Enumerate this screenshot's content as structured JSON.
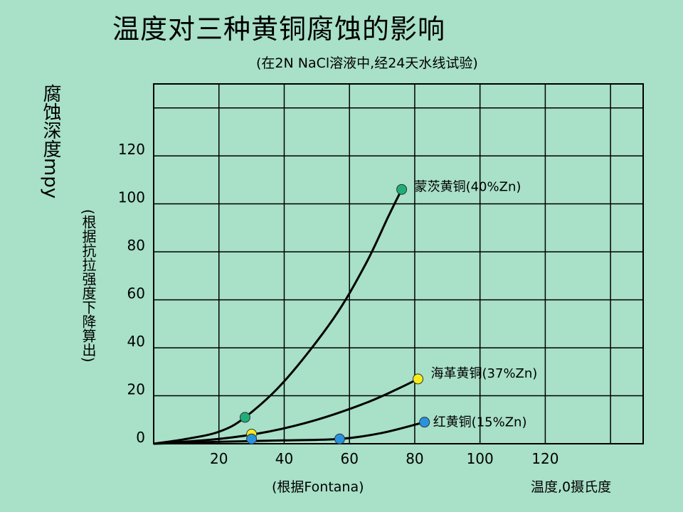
{
  "chart_data": {
    "type": "line",
    "title": "温度对三种黄铜腐蚀的影响",
    "subtitle": "(在2N NaCl溶液中,经24天水线试验)",
    "ylabel": "腐蚀深度mpy",
    "ylabel_note": "(根据抗拉强度下降算出)",
    "xlabel": "温度,0摄氏度",
    "x_note": "(根据Fontana)",
    "xlim": [
      0,
      150
    ],
    "ylim": [
      0,
      150
    ],
    "x_ticks": [
      "20",
      "40",
      "60",
      "80",
      "100",
      "120"
    ],
    "x_tick_values": [
      20,
      40,
      60,
      80,
      100,
      120
    ],
    "y_ticks": [
      "0",
      "20",
      "40",
      "60",
      "80",
      "100",
      "120"
    ],
    "y_tick_values": [
      0,
      20,
      40,
      60,
      80,
      100,
      120
    ],
    "grid": true,
    "series": [
      {
        "name": "蒙茨黄铜(40%Zn)",
        "color": "#1fae7a",
        "curve": [
          [
            0,
            0
          ],
          [
            10,
            2
          ],
          [
            20,
            5
          ],
          [
            28,
            11
          ],
          [
            40,
            26
          ],
          [
            55,
            52
          ],
          [
            65,
            75
          ],
          [
            72,
            95
          ],
          [
            76,
            106
          ]
        ],
        "markers": [
          [
            28,
            11
          ],
          [
            76,
            106
          ]
        ]
      },
      {
        "name": "海革黄铜(37%Zn)",
        "color": "#f5ec1a",
        "curve": [
          [
            0,
            0
          ],
          [
            20,
            2
          ],
          [
            35,
            5
          ],
          [
            50,
            10
          ],
          [
            65,
            17
          ],
          [
            75,
            23
          ],
          [
            81,
            27
          ]
        ],
        "markers": [
          [
            30,
            4
          ],
          [
            81,
            27
          ]
        ]
      },
      {
        "name": "红黄铜(15%Zn)",
        "color": "#2a93e0",
        "curve": [
          [
            0,
            0
          ],
          [
            20,
            0.8
          ],
          [
            40,
            1.4
          ],
          [
            57,
            2
          ],
          [
            70,
            4.5
          ],
          [
            83,
            9
          ]
        ],
        "markers": [
          [
            30,
            2
          ],
          [
            57,
            2
          ],
          [
            83,
            9
          ]
        ]
      }
    ]
  }
}
